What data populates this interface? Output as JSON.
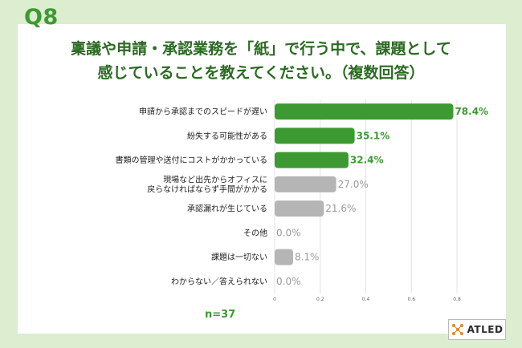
{
  "question_label": "Q8",
  "title_line1": "稟議や申請・承認業務を「紙」で行う中で、課題として",
  "title_line2": "感じていることを教えてください。（複数回答）",
  "sample_size": "n=37",
  "brand": "ATLED",
  "colors": {
    "highlight": "#3d9a32",
    "other": "#b5b5b5",
    "value_gray": "#9a9a9a",
    "background": "#dcedd0"
  },
  "chart_data": {
    "type": "bar",
    "orientation": "horizontal",
    "categories": [
      [
        "申請から承認までのスピードが遅い"
      ],
      [
        "紛失する可能性がある"
      ],
      [
        "書類の管理や送付にコストがかかっている"
      ],
      [
        "現場など出先からオフィスに",
        "戻らなければならず手間がかかる"
      ],
      [
        "承認漏れが生じている"
      ],
      [
        "その他"
      ],
      [
        "課題は一切ない"
      ],
      [
        "わからない／答えられない"
      ]
    ],
    "values": [
      0.784,
      0.351,
      0.324,
      0.27,
      0.216,
      0.0,
      0.081,
      0.0
    ],
    "value_labels": [
      "78.4%",
      "35.1%",
      "32.4%",
      "27.0%",
      "21.6%",
      "0.0%",
      "8.1%",
      "0.0%"
    ],
    "highlighted": [
      true,
      true,
      true,
      false,
      false,
      false,
      false,
      false
    ],
    "x_ticks": [
      0,
      0.2,
      0.4,
      0.6,
      0.8
    ],
    "x_tick_labels": [
      "0",
      "0.2",
      "0.4",
      "0.6",
      "0.8"
    ],
    "xlim": [
      0,
      0.8
    ],
    "grid": true
  }
}
